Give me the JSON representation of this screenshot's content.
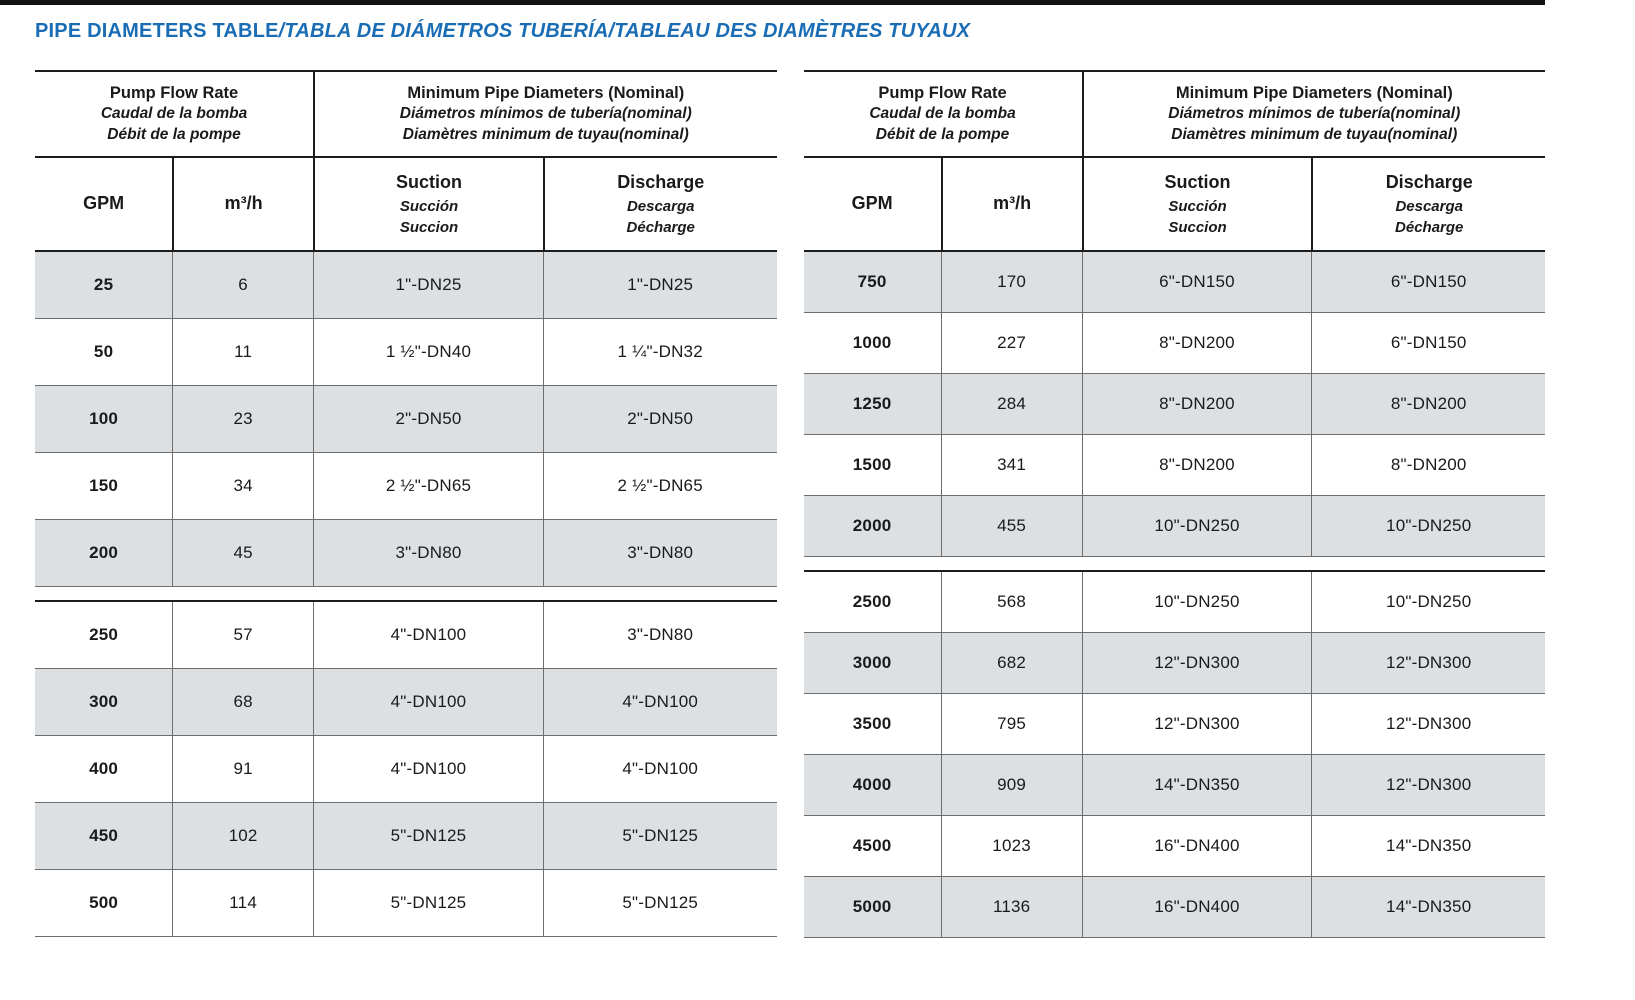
{
  "page": {
    "title_en": "PIPE DIAMETERS TABLE",
    "title_rest": "/TABLA DE DIÁMETROS TUBERÍA/TABLEAU DES DIAMÈTRES TUYAUX"
  },
  "headers": {
    "flow_group": {
      "en": "Pump Flow Rate",
      "es": "Caudal de la bomba",
      "fr": "Débit de la pompe"
    },
    "diameter_group": {
      "en": "Minimum Pipe Diameters (Nominal)",
      "es": "Diámetros mínimos de tubería(nominal)",
      "fr": "Diamètres minimum de tuyau(nominal)"
    },
    "col_gpm": "GPM",
    "col_m3h": "m³/h",
    "col_suction": {
      "en": "Suction",
      "es": "Succión",
      "fr": "Succion"
    },
    "col_discharge": {
      "en": "Discharge",
      "es": "Descarga",
      "fr": "Décharge"
    }
  },
  "tables": [
    {
      "name": "left",
      "segments": [
        [
          [
            "25",
            "6",
            "1\"-DN25",
            "1\"-DN25"
          ],
          [
            "50",
            "11",
            "1 ½\"-DN40",
            "1 ¼\"-DN32"
          ],
          [
            "100",
            "23",
            "2\"-DN50",
            "2\"-DN50"
          ],
          [
            "150",
            "34",
            "2 ½\"-DN65",
            "2 ½\"-DN65"
          ],
          [
            "200",
            "45",
            "3\"-DN80",
            "3\"-DN80"
          ]
        ],
        [
          [
            "250",
            "57",
            "4\"-DN100",
            "3\"-DN80"
          ],
          [
            "300",
            "68",
            "4\"-DN100",
            "4\"-DN100"
          ],
          [
            "400",
            "91",
            "4\"-DN100",
            "4\"-DN100"
          ],
          [
            "450",
            "102",
            "5\"-DN125",
            "5\"-DN125"
          ],
          [
            "500",
            "114",
            "5\"-DN125",
            "5\"-DN125"
          ]
        ]
      ]
    },
    {
      "name": "right",
      "segments": [
        [
          [
            "750",
            "170",
            "6\"-DN150",
            "6\"-DN150"
          ],
          [
            "1000",
            "227",
            "8\"-DN200",
            "6\"-DN150"
          ],
          [
            "1250",
            "284",
            "8\"-DN200",
            "8\"-DN200"
          ],
          [
            "1500",
            "341",
            "8\"-DN200",
            "8\"-DN200"
          ],
          [
            "2000",
            "455",
            "10\"-DN250",
            "10\"-DN250"
          ]
        ],
        [
          [
            "2500",
            "568",
            "10\"-DN250",
            "10\"-DN250"
          ],
          [
            "3000",
            "682",
            "12\"-DN300",
            "12\"-DN300"
          ],
          [
            "3500",
            "795",
            "12\"-DN300",
            "12\"-DN300"
          ],
          [
            "4000",
            "909",
            "14\"-DN350",
            "12\"-DN300"
          ],
          [
            "4500",
            "1023",
            "16\"-DN400",
            "14\"-DN350"
          ],
          [
            "5000",
            "1136",
            "16\"-DN400",
            "14\"-DN350"
          ]
        ]
      ]
    }
  ],
  "colors": {
    "title": "#1a6db5",
    "row_shade": "#dce0e3",
    "border_dark": "#1d1d1d",
    "border_row": "#6e6e6e"
  }
}
